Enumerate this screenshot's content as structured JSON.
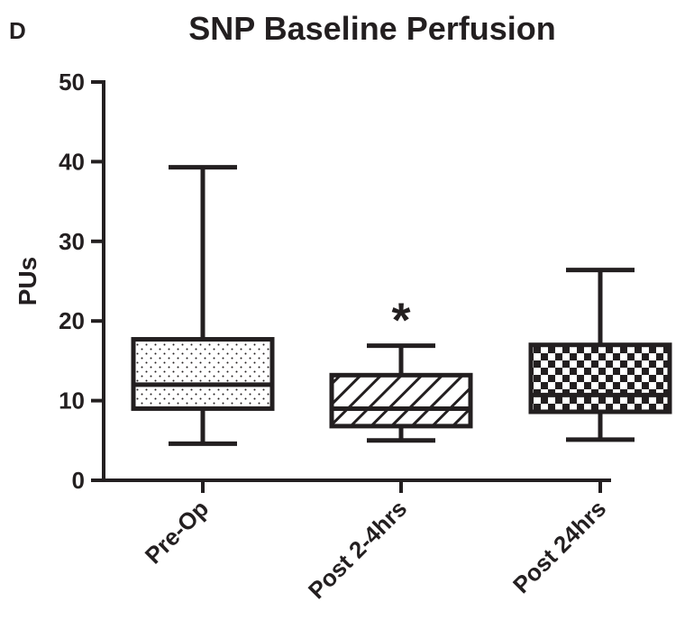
{
  "panel_label": "D",
  "chart_data": {
    "type": "box",
    "title": "SNP Baseline Perfusion",
    "xlabel": "",
    "ylabel": "PUs",
    "ylim": [
      0,
      50
    ],
    "yticks": [
      0,
      10,
      20,
      30,
      40,
      50
    ],
    "grid": false,
    "legend": "none",
    "categories": [
      "Pre-Op",
      "Post 2-4hrs",
      "Post 24hrs"
    ],
    "boxes": [
      {
        "category": "Pre-Op",
        "min": 4.6,
        "q1": 9.0,
        "median": 12.0,
        "q3": 17.7,
        "max": 39.3,
        "pattern": "dots"
      },
      {
        "category": "Post 2-4hrs",
        "min": 5.0,
        "q1": 6.8,
        "median": 9.0,
        "q3": 13.2,
        "max": 16.9,
        "pattern": "diagonal-hatch"
      },
      {
        "category": "Post 24hrs",
        "min": 5.1,
        "q1": 8.6,
        "median": 10.7,
        "q3": 17.0,
        "max": 26.4,
        "pattern": "checkerboard"
      }
    ],
    "annotations": [
      {
        "category": "Post 2-4hrs",
        "text": "*"
      }
    ],
    "colors": {
      "ink": "#231f20",
      "background": "#ffffff"
    }
  }
}
